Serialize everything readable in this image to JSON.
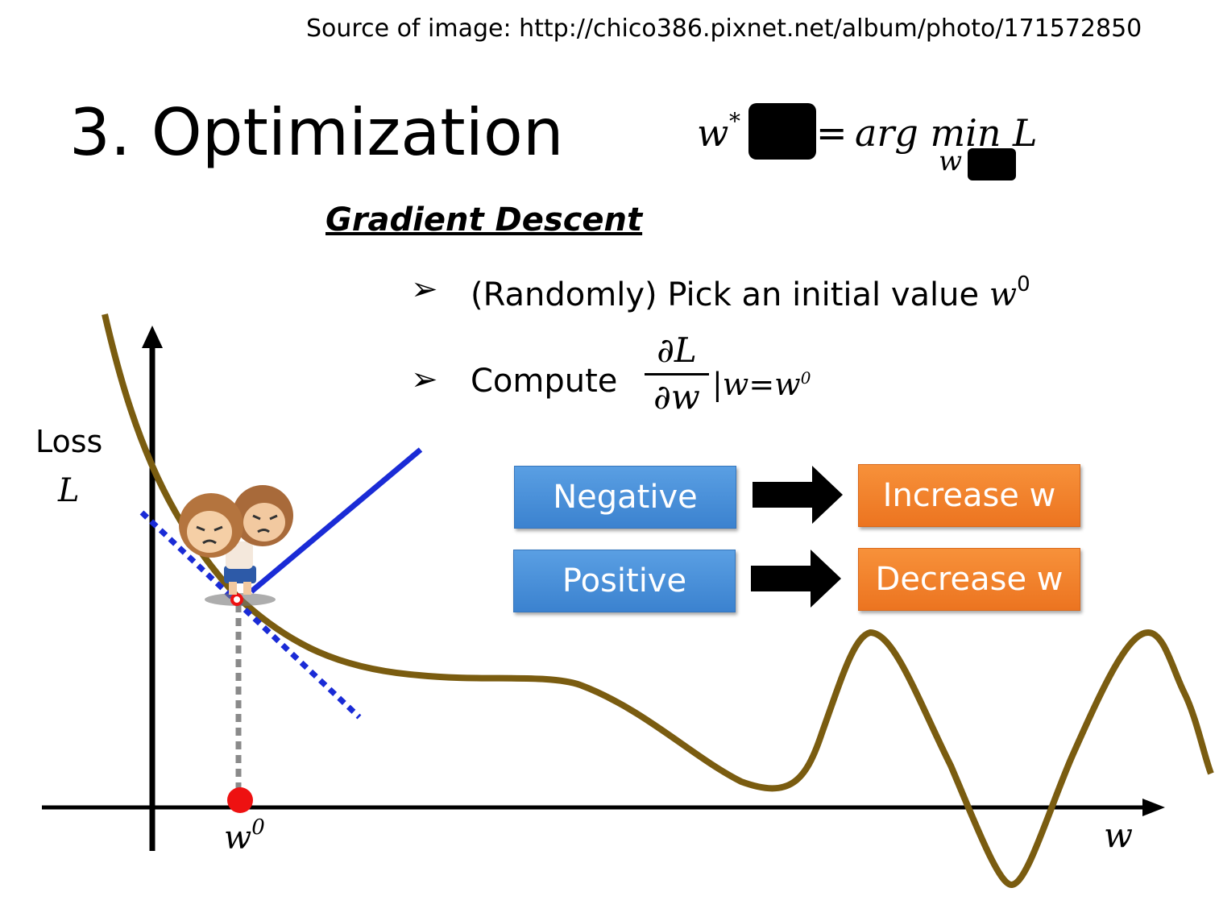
{
  "source_note": "Source of image: http://chico386.pixnet.net/album/photo/171572850",
  "title": "3. Optimization",
  "equation": {
    "lhs": "w",
    "lhs_sup": "*",
    "equals": "=",
    "rhs": "arg min L",
    "rhs_sub": "w"
  },
  "gradient_descent": {
    "heading": "Gradient Descent",
    "bullet_glyph": "➢",
    "step1_text": "(Randomly) Pick an initial value ",
    "step1_var": "w",
    "step1_sup": "0",
    "step2_text": "Compute",
    "derivative_numerator": "∂L",
    "derivative_denominator": "∂w",
    "evaluation": "|w=w",
    "evaluation_sup": "0"
  },
  "rules": [
    {
      "condition": "Negative",
      "action": "Increase w"
    },
    {
      "condition": "Positive",
      "action": "Decrease w"
    }
  ],
  "plot": {
    "y_axis_label": "Loss",
    "y_axis_var": "L",
    "x_axis_var": "w",
    "initial_point_label": "w",
    "initial_point_sup": "0"
  },
  "colors": {
    "curve": "#7a5c10",
    "tangent": "#1a2bd6",
    "condition_box": "#3f88d6",
    "action_box": "#f07d28",
    "point": "#ee1111"
  }
}
